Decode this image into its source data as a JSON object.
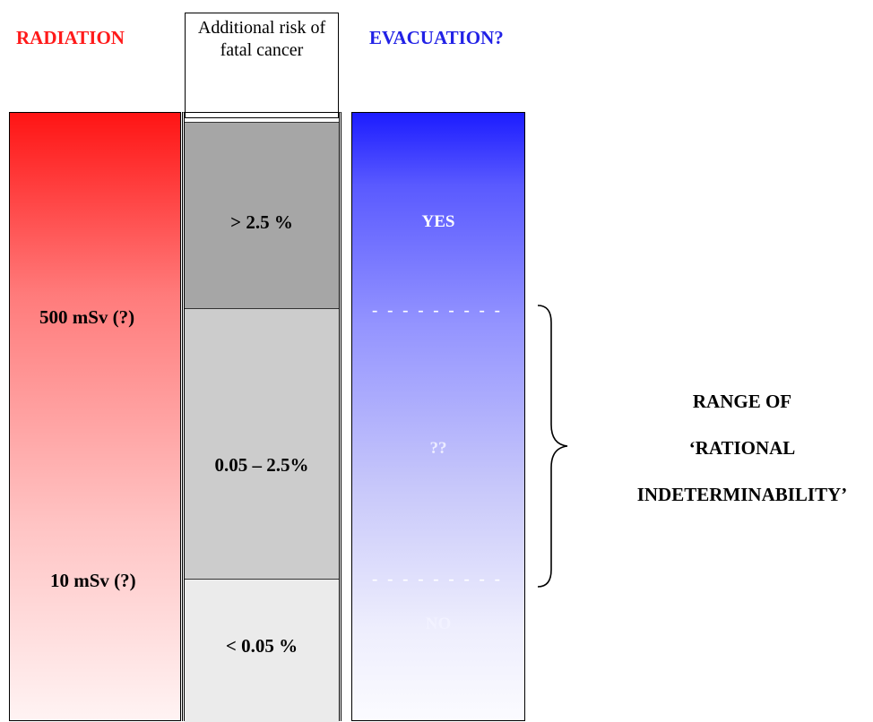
{
  "headers": {
    "radiation": "RADIATION",
    "risk": "Additional risk of fatal cancer",
    "evacuation": "EVACUATION?"
  },
  "radiation": {
    "threshold_high": "500 mSv (?)",
    "threshold_low": "10 mSv (?)"
  },
  "risk": {
    "high": "> 2.5 %",
    "mid": "0.05 – 2.5%",
    "low": "< 0.05 %"
  },
  "evacuation": {
    "yes": "YES",
    "uncertain": "??",
    "no": "NO",
    "separator": "- - - - - - - - -"
  },
  "range": {
    "line1": "RANGE OF",
    "line2": "‘RATIONAL",
    "line3": "INDETERMINABILITY’"
  },
  "colors": {
    "radiation_title": "#ff1a1a",
    "evacuation_title": "#2222e6",
    "risk_high": "#a6a6a6",
    "risk_mid": "#cccccc",
    "risk_low": "#ebebeb"
  }
}
